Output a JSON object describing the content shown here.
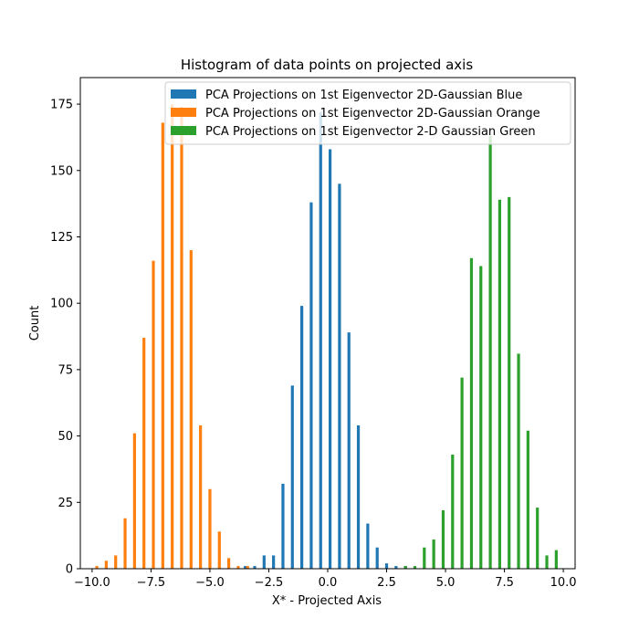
{
  "chart_data": {
    "type": "bar",
    "title": "Histogram of data points on projected axis",
    "xlabel": "X* - Projected Axis",
    "ylabel": "Count",
    "xlim": [
      -10.5,
      10.5
    ],
    "ylim": [
      0,
      185
    ],
    "xticks": [
      -10.0,
      -7.5,
      -5.0,
      -2.5,
      0.0,
      2.5,
      5.0,
      7.5,
      10.0
    ],
    "xtick_labels": [
      "−10.0",
      "−7.5",
      "−5.0",
      "−2.5",
      "0.0",
      "2.5",
      "5.0",
      "7.5",
      "10.0"
    ],
    "yticks": [
      0,
      25,
      50,
      75,
      100,
      125,
      150,
      175
    ],
    "ytick_labels": [
      "0",
      "25",
      "50",
      "75",
      "100",
      "125",
      "150",
      "175"
    ],
    "legend_position": "upper-right",
    "series": [
      {
        "name": "PCA Projections on 1st Eigenvector 2D-Gaussian Blue",
        "color": "#1f77b4",
        "x": [
          -3.5,
          -3.1,
          -2.7,
          -2.3,
          -1.9,
          -1.5,
          -1.1,
          -0.7,
          -0.3,
          0.1,
          0.5,
          0.9,
          1.3,
          1.7,
          2.1,
          2.5,
          2.9,
          3.3
        ],
        "values": [
          1,
          1,
          5,
          5,
          32,
          69,
          99,
          138,
          172,
          158,
          145,
          89,
          54,
          17,
          8,
          2,
          1,
          1
        ]
      },
      {
        "name": "PCA Projections on 1st Eigenvector 2D-Gaussian Orange",
        "color": "#ff7f0e",
        "x": [
          -9.8,
          -9.4,
          -9.0,
          -8.6,
          -8.2,
          -7.8,
          -7.4,
          -7.0,
          -6.6,
          -6.2,
          -5.8,
          -5.4,
          -5.0,
          -4.6,
          -4.2,
          -3.8,
          -3.4
        ],
        "values": [
          1,
          3,
          5,
          19,
          51,
          87,
          116,
          168,
          175,
          174,
          120,
          54,
          30,
          14,
          4,
          1,
          1
        ]
      },
      {
        "name": "PCA Projections on 1st Eigenvector 2-D Gaussian Green",
        "color": "#2ca02c",
        "x": [
          3.3,
          3.7,
          4.1,
          4.5,
          4.9,
          5.3,
          5.7,
          6.1,
          6.5,
          6.9,
          7.3,
          7.7,
          8.1,
          8.5,
          8.9,
          9.3,
          9.7
        ],
        "values": [
          1,
          1,
          8,
          11,
          22,
          43,
          72,
          117,
          114,
          163,
          139,
          140,
          81,
          52,
          23,
          5,
          7
        ]
      }
    ]
  }
}
